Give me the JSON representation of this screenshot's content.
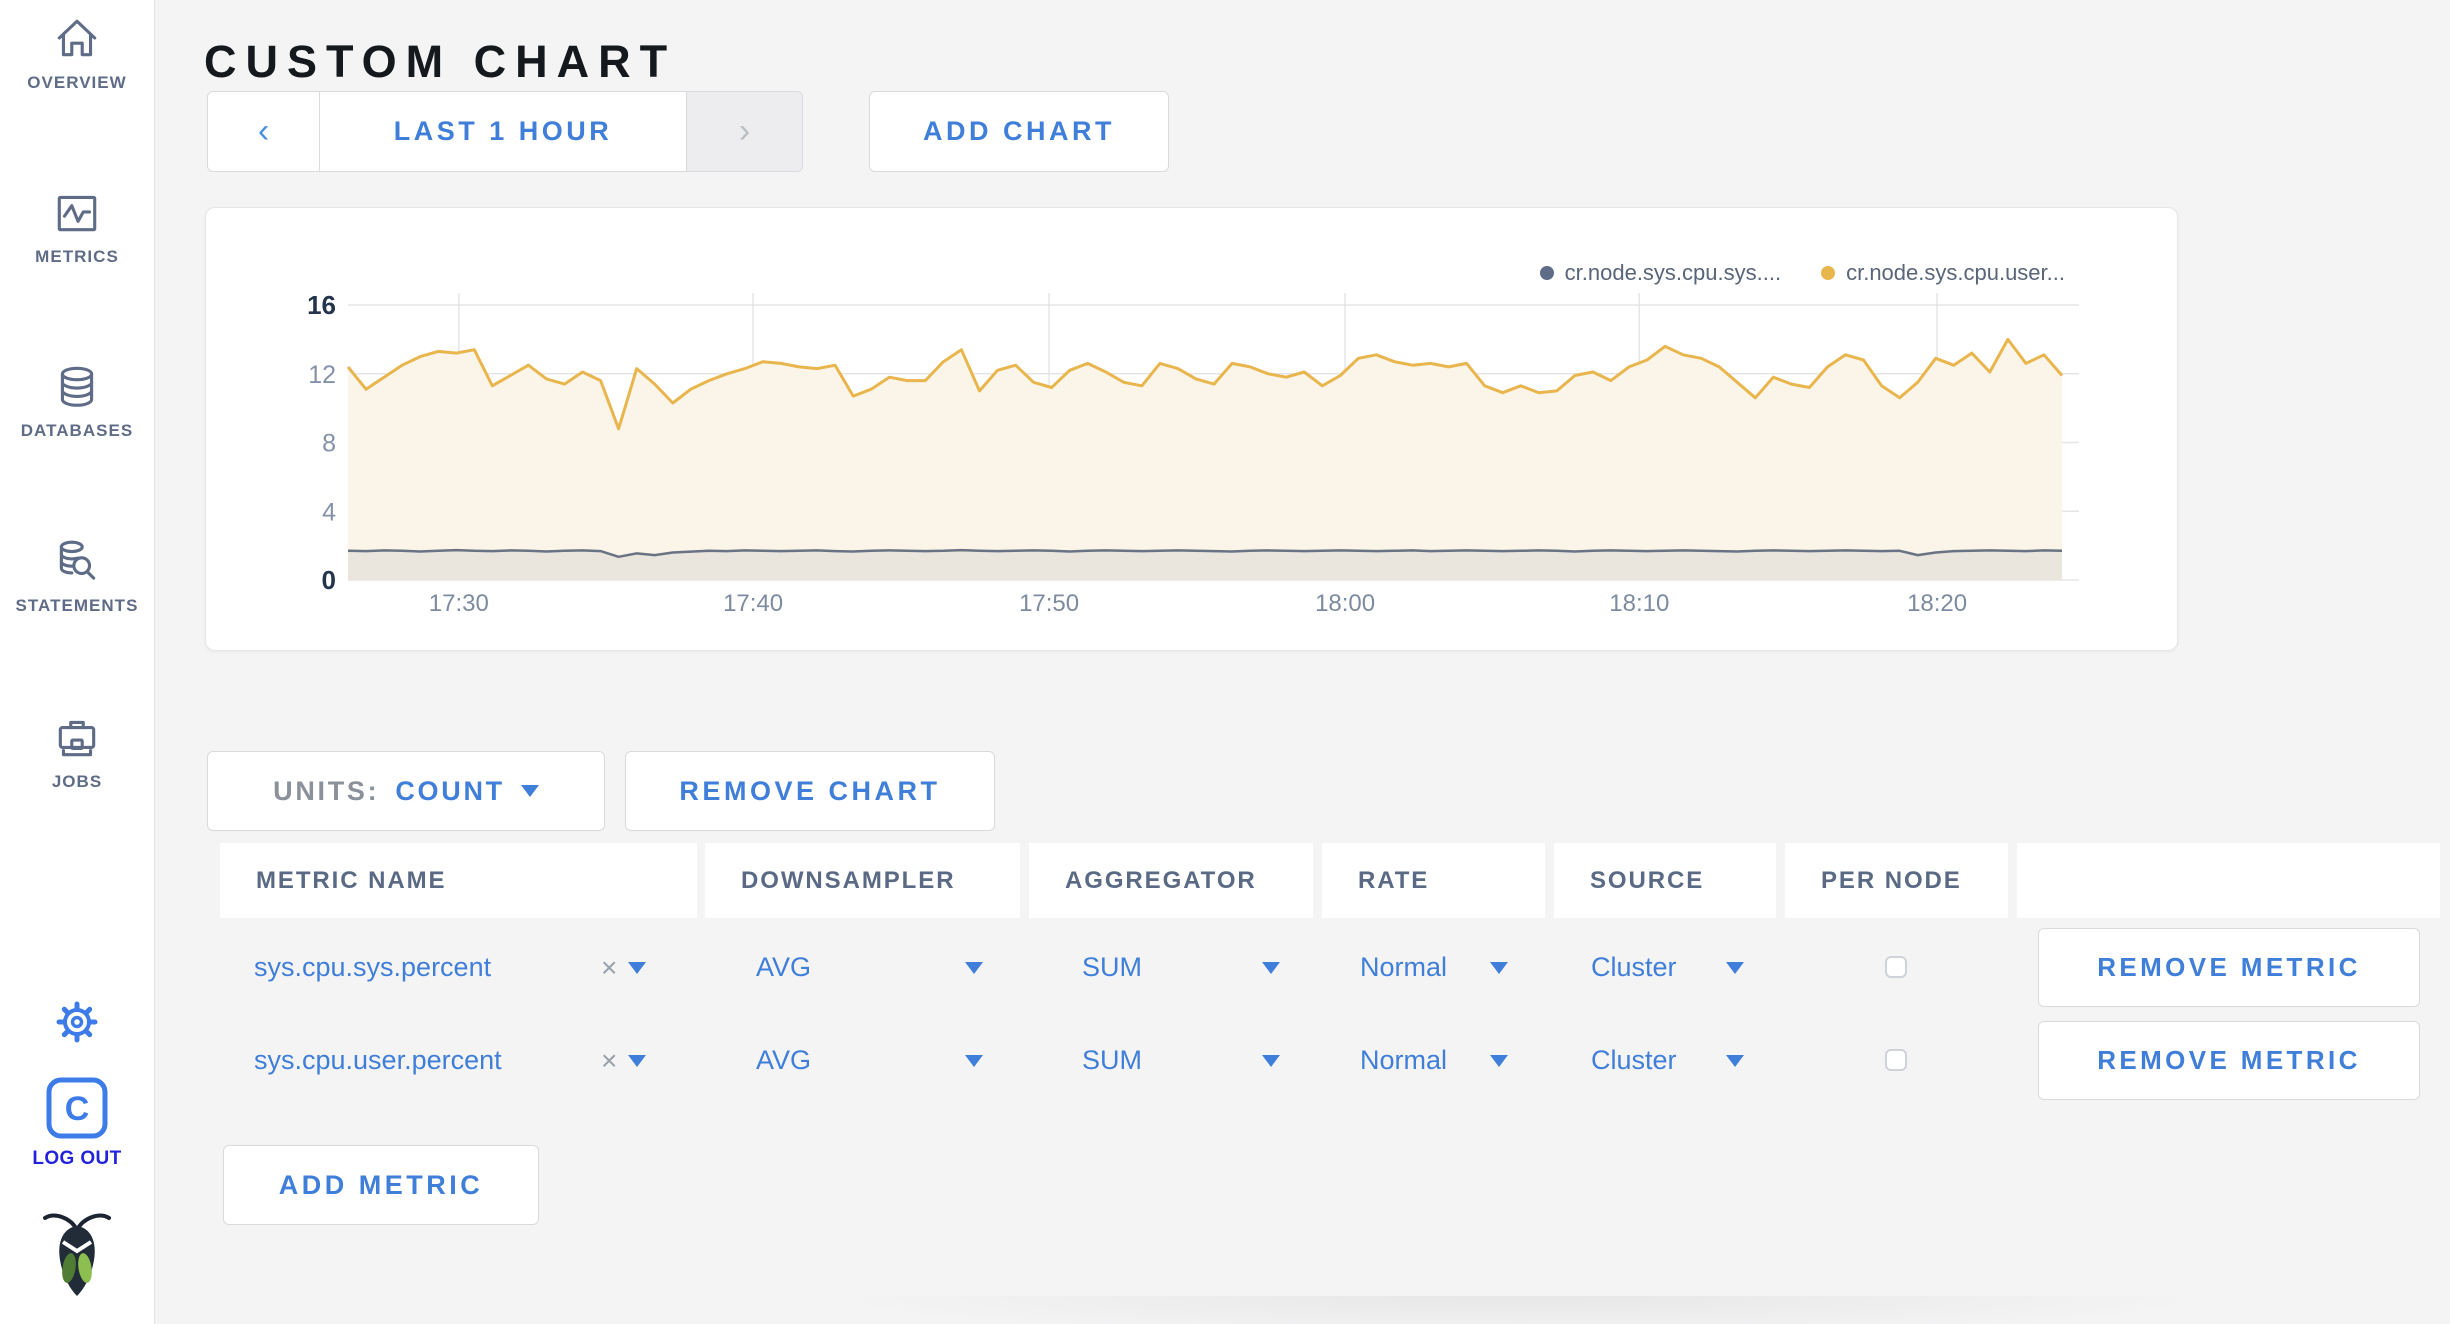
{
  "sidebar": {
    "items": [
      {
        "label": "OVERVIEW",
        "icon": "home"
      },
      {
        "label": "METRICS",
        "icon": "metrics-chart"
      },
      {
        "label": "DATABASES",
        "icon": "database"
      },
      {
        "label": "STATEMENTS",
        "icon": "database-search"
      },
      {
        "label": "JOBS",
        "icon": "briefcase"
      }
    ],
    "logout_label": "LOG OUT"
  },
  "header": {
    "title": "CUSTOM CHART"
  },
  "toolbar": {
    "prev_arrow": "‹",
    "time_range_label": "LAST 1 HOUR",
    "next_arrow": "›",
    "add_chart_label": "ADD CHART"
  },
  "chart_controls": {
    "units_label": "UNITS:",
    "units_value": "COUNT",
    "remove_chart_label": "REMOVE CHART"
  },
  "chart_data": {
    "type": "area",
    "title": "",
    "xlabel": "",
    "ylabel": "",
    "x_range": [
      "17:26",
      "18:25"
    ],
    "x_ticks": [
      "17:30",
      "17:40",
      "17:50",
      "18:00",
      "18:10",
      "18:20"
    ],
    "y_ticks": [
      0,
      4,
      8,
      12,
      16
    ],
    "ylim": [
      0,
      16
    ],
    "grid": true,
    "legend_position": "top-right",
    "legend": [
      {
        "name": "cr.node.sys.cpu.sys....",
        "color": "#5f6c87"
      },
      {
        "name": "cr.node.sys.cpu.user...",
        "color": "#e9b54d"
      }
    ],
    "series": [
      {
        "name": "cr.node.sys.cpu.sys....",
        "metric": "sys.cpu.sys.percent",
        "color": "#6a7383",
        "fill": "#eae6de",
        "values": [
          1.7,
          1.68,
          1.72,
          1.7,
          1.66,
          1.7,
          1.74,
          1.7,
          1.68,
          1.72,
          1.7,
          1.66,
          1.7,
          1.72,
          1.68,
          1.35,
          1.55,
          1.45,
          1.6,
          1.65,
          1.7,
          1.68,
          1.72,
          1.7,
          1.68,
          1.7,
          1.72,
          1.68,
          1.66,
          1.7,
          1.72,
          1.7,
          1.68,
          1.7,
          1.74,
          1.7,
          1.68,
          1.7,
          1.72,
          1.7,
          1.66,
          1.7,
          1.72,
          1.7,
          1.68,
          1.7,
          1.72,
          1.7,
          1.68,
          1.66,
          1.7,
          1.72,
          1.7,
          1.68,
          1.7,
          1.72,
          1.7,
          1.68,
          1.7,
          1.72,
          1.68,
          1.7,
          1.72,
          1.7,
          1.68,
          1.7,
          1.72,
          1.7,
          1.66,
          1.7,
          1.72,
          1.7,
          1.68,
          1.7,
          1.72,
          1.7,
          1.68,
          1.66,
          1.7,
          1.72,
          1.7,
          1.68,
          1.7,
          1.72,
          1.7,
          1.68,
          1.7,
          1.45,
          1.6,
          1.68,
          1.7,
          1.72,
          1.7,
          1.68,
          1.72,
          1.7
        ]
      },
      {
        "name": "cr.node.sys.cpu.user...",
        "metric": "sys.cpu.user.percent",
        "color": "#e9b54d",
        "fill": "#faf5e8",
        "values": [
          12.4,
          11.1,
          11.8,
          12.5,
          13.0,
          13.3,
          13.2,
          13.4,
          11.3,
          11.9,
          12.5,
          11.7,
          11.4,
          12.1,
          11.6,
          8.8,
          12.3,
          11.4,
          10.3,
          11.1,
          11.6,
          12.0,
          12.3,
          12.7,
          12.6,
          12.4,
          12.3,
          12.5,
          10.7,
          11.1,
          11.8,
          11.6,
          11.6,
          12.7,
          13.4,
          11.0,
          12.2,
          12.5,
          11.5,
          11.2,
          12.2,
          12.6,
          12.1,
          11.5,
          11.3,
          12.6,
          12.3,
          11.7,
          11.4,
          12.6,
          12.4,
          12.0,
          11.8,
          12.1,
          11.3,
          11.9,
          12.9,
          13.1,
          12.7,
          12.5,
          12.6,
          12.4,
          12.6,
          11.3,
          10.9,
          11.3,
          10.9,
          11.0,
          11.9,
          12.1,
          11.6,
          12.4,
          12.8,
          13.6,
          13.1,
          12.9,
          12.4,
          11.5,
          10.6,
          11.8,
          11.4,
          11.2,
          12.4,
          13.1,
          12.8,
          11.3,
          10.6,
          11.5,
          12.9,
          12.5,
          13.2,
          12.1,
          14.0,
          12.6,
          13.1,
          11.9
        ]
      }
    ]
  },
  "metrics_table": {
    "headers": [
      "METRIC NAME",
      "DOWNSAMPLER",
      "AGGREGATOR",
      "RATE",
      "SOURCE",
      "PER NODE"
    ],
    "clear_symbol": "×",
    "rows": [
      {
        "name": "sys.cpu.sys.percent",
        "downsampler": "AVG",
        "aggregator": "SUM",
        "rate": "Normal",
        "source": "Cluster",
        "per_node": false,
        "remove_label": "REMOVE METRIC"
      },
      {
        "name": "sys.cpu.user.percent",
        "downsampler": "AVG",
        "aggregator": "SUM",
        "rate": "Normal",
        "source": "Cluster",
        "per_node": false,
        "remove_label": "REMOVE METRIC"
      }
    ],
    "add_metric_label": "ADD METRIC"
  }
}
